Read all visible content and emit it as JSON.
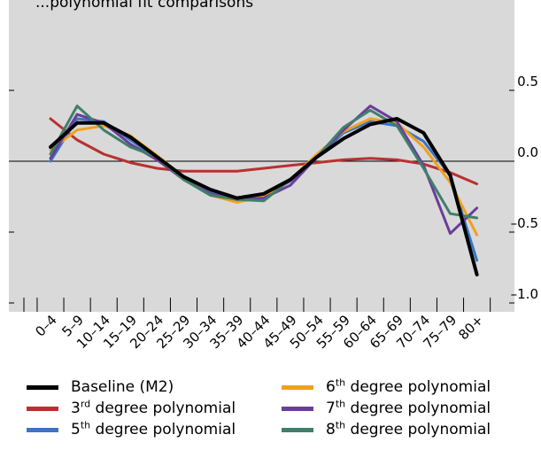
{
  "header": {
    "text": "...polynomial fit comparisons"
  },
  "chart_data": {
    "type": "line",
    "categories": [
      "0–4",
      "5–9",
      "10–14",
      "15–19",
      "20–24",
      "25–29",
      "30–34",
      "35–39",
      "40–44",
      "45–49",
      "50–54",
      "55–59",
      "60–64",
      "65–69",
      "70–74",
      "75–79",
      "80+"
    ],
    "ylim": [
      -1.0,
      0.9
    ],
    "yticks": [
      {
        "value": 0.5,
        "label": "0.5"
      },
      {
        "value": 0.0,
        "label": "0.0"
      },
      {
        "value": -0.5,
        "label": "–0.5"
      },
      {
        "value": -1.0,
        "label": "–1.0"
      }
    ],
    "grid": false,
    "zero_line": true,
    "legend_placement": "bottom",
    "series": [
      {
        "name": "3rd degree polynomial",
        "base": "3",
        "sup": "rd",
        "tail": " degree polynomial",
        "color": "#b8312f",
        "width": 3,
        "values": [
          0.3,
          0.15,
          0.05,
          -0.01,
          -0.05,
          -0.07,
          -0.07,
          -0.07,
          -0.05,
          -0.03,
          -0.01,
          0.01,
          0.02,
          0.01,
          -0.02,
          -0.08,
          -0.16
        ]
      },
      {
        "name": "5th degree polynomial",
        "base": "5",
        "sup": "th",
        "tail": " degree polynomial",
        "color": "#3b75c3",
        "width": 3,
        "values": [
          0.0,
          0.3,
          0.28,
          0.15,
          0.02,
          -0.12,
          -0.22,
          -0.28,
          -0.25,
          -0.14,
          0.03,
          0.2,
          0.28,
          0.25,
          0.14,
          -0.1,
          -0.7
        ]
      },
      {
        "name": "6th degree polynomial",
        "base": "6",
        "sup": "th",
        "tail": " degree polynomial",
        "color": "#f0a020",
        "width": 3,
        "values": [
          0.08,
          0.22,
          0.25,
          0.18,
          0.04,
          -0.11,
          -0.24,
          -0.29,
          -0.25,
          -0.13,
          0.05,
          0.21,
          0.3,
          0.27,
          0.1,
          -0.15,
          -0.52
        ]
      },
      {
        "name": "7th degree polynomial",
        "base": "7",
        "sup": "th",
        "tail": " degree polynomial",
        "color": "#6b3d9a",
        "width": 3,
        "values": [
          0.02,
          0.33,
          0.27,
          0.12,
          0.01,
          -0.13,
          -0.23,
          -0.27,
          -0.26,
          -0.17,
          0.03,
          0.22,
          0.39,
          0.28,
          -0.03,
          -0.51,
          -0.33
        ]
      },
      {
        "name": "8th degree polynomial",
        "base": "8",
        "sup": "th",
        "tail": " degree polynomial",
        "color": "#3f7f6b",
        "width": 3,
        "values": [
          0.05,
          0.39,
          0.22,
          0.1,
          0.03,
          -0.13,
          -0.24,
          -0.27,
          -0.28,
          -0.13,
          0.03,
          0.24,
          0.36,
          0.25,
          -0.05,
          -0.37,
          -0.4
        ]
      },
      {
        "name": "Baseline (M2)",
        "base": "Baseline (M2)",
        "sup": "",
        "tail": "",
        "color": "#000000",
        "width": 4,
        "values": [
          0.1,
          0.27,
          0.27,
          0.17,
          0.03,
          -0.11,
          -0.2,
          -0.26,
          -0.23,
          -0.13,
          0.03,
          0.16,
          0.26,
          0.3,
          0.2,
          -0.1,
          -0.8
        ]
      }
    ],
    "legend_order": [
      "Baseline (M2)",
      "6th degree polynomial",
      "3rd degree polynomial",
      "7th degree polynomial",
      "5th degree polynomial",
      "8th degree polynomial"
    ]
  }
}
